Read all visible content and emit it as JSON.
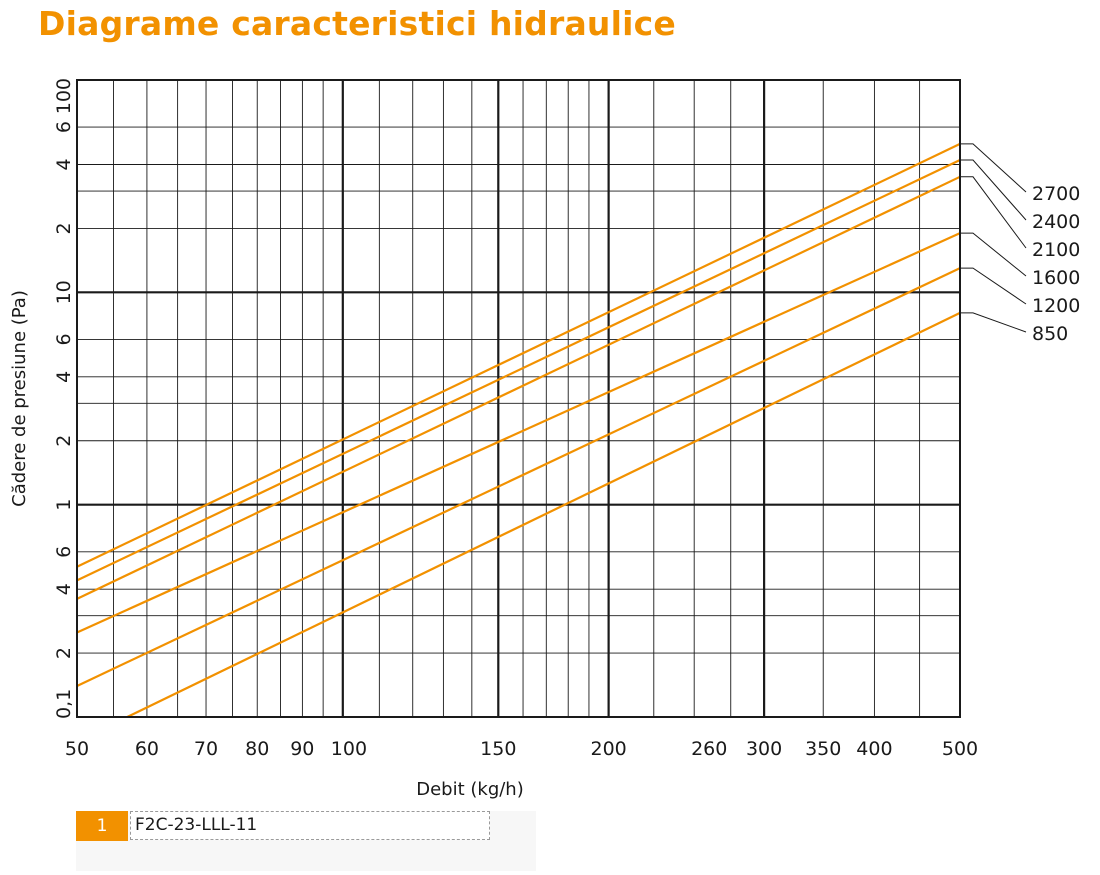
{
  "title": "Diagrame caracteristici hidraulice",
  "colors": {
    "accent": "#F29100",
    "series": "#F29100",
    "grid": "#1a1a1a"
  },
  "legend": {
    "number": "1",
    "name": "F2C-23-LLL-11"
  },
  "chart_data": {
    "type": "line",
    "title": "",
    "xlabel": "Debit (kg/h)",
    "ylabel": "Cădere de presiune (Pa)",
    "xscale": "log",
    "yscale": "log",
    "xlim": [
      50,
      500
    ],
    "ylim": [
      0.1,
      100
    ],
    "grid": true,
    "legend_placement": "right",
    "x_tick_labels": [
      "50",
      "60",
      "70",
      "80",
      "90",
      "100",
      "150",
      "200",
      "260",
      "300",
      "350",
      "400",
      "500"
    ],
    "x_tick_values": [
      50,
      60,
      70,
      80,
      90,
      100,
      150,
      200,
      260,
      300,
      350,
      400,
      500
    ],
    "y_tick_labels": [
      {
        "value": 0.1,
        "label": "0,1"
      },
      {
        "value": 0.2,
        "label": "2"
      },
      {
        "value": 0.4,
        "label": "4"
      },
      {
        "value": 0.6,
        "label": "6"
      },
      {
        "value": 1,
        "label": "1"
      },
      {
        "value": 2,
        "label": "2"
      },
      {
        "value": 4,
        "label": "4"
      },
      {
        "value": 6,
        "label": "6"
      },
      {
        "value": 10,
        "label": "10"
      },
      {
        "value": 20,
        "label": "2"
      },
      {
        "value": 40,
        "label": "4"
      },
      {
        "value": 60,
        "label": "6"
      },
      {
        "value": 100,
        "label": "100"
      }
    ],
    "x_gridlines": [
      50,
      55,
      60,
      65,
      70,
      75,
      80,
      85,
      90,
      95,
      100,
      110,
      120,
      130,
      140,
      150,
      160,
      170,
      180,
      190,
      200,
      225,
      250,
      275,
      300,
      350,
      400,
      450,
      500
    ],
    "x_major_gridlines": [
      100,
      150,
      200,
      300
    ],
    "y_gridlines": [
      0.2,
      0.3,
      0.4,
      0.6,
      1,
      2,
      3,
      4,
      6,
      10,
      20,
      30,
      40,
      60
    ],
    "y_major_gridlines": [
      1,
      10
    ],
    "series": [
      {
        "name": "2700",
        "x": [
          50,
          500
        ],
        "y": [
          0.51,
          50
        ]
      },
      {
        "name": "2400",
        "x": [
          50,
          500
        ],
        "y": [
          0.44,
          42
        ]
      },
      {
        "name": "2100",
        "x": [
          50,
          500
        ],
        "y": [
          0.36,
          35
        ]
      },
      {
        "name": "1600",
        "x": [
          50,
          500
        ],
        "y": [
          0.25,
          19
        ]
      },
      {
        "name": "1200",
        "x": [
          50,
          500
        ],
        "y": [
          0.14,
          13
        ]
      },
      {
        "name": "850",
        "x": [
          57,
          500
        ],
        "y": [
          0.1,
          8
        ]
      }
    ]
  }
}
